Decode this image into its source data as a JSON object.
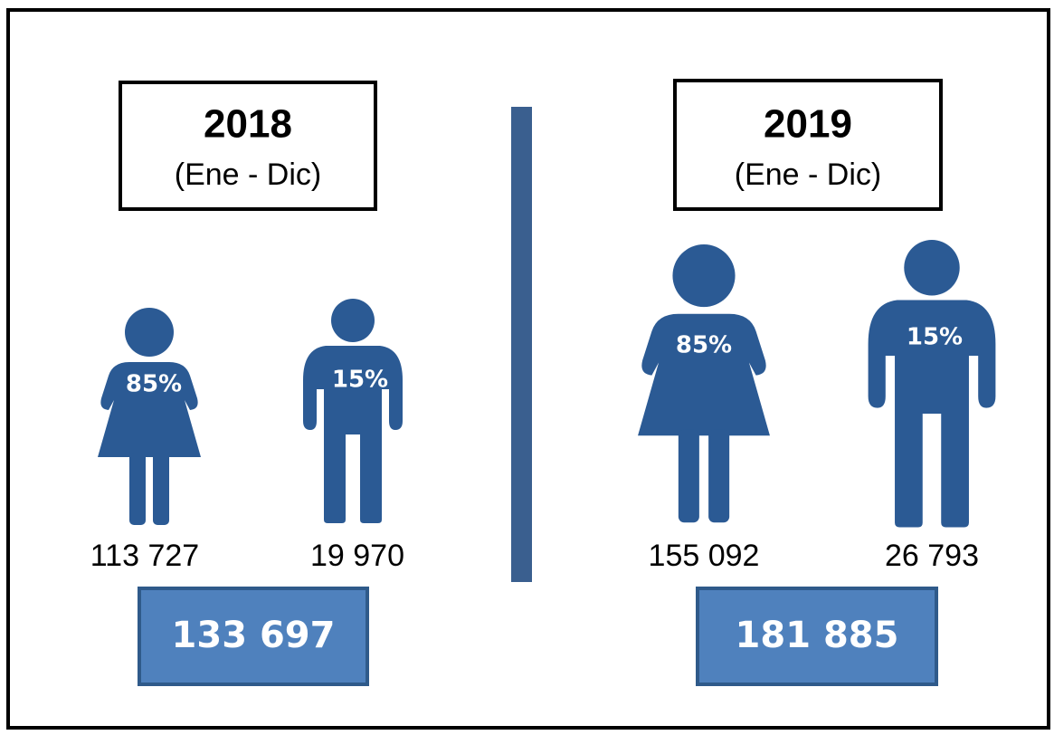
{
  "panels": [
    {
      "year": "2018",
      "period": "(Ene - Dic)",
      "women": {
        "percent": "85%",
        "count": "113 727"
      },
      "men": {
        "percent": "15%",
        "count": "19 970"
      },
      "total": "133 697"
    },
    {
      "year": "2019",
      "period": "(Ene - Dic)",
      "women": {
        "percent": "85%",
        "count": "155 092"
      },
      "men": {
        "percent": "15%",
        "count": "26 793"
      },
      "total": "181 885"
    }
  ]
}
